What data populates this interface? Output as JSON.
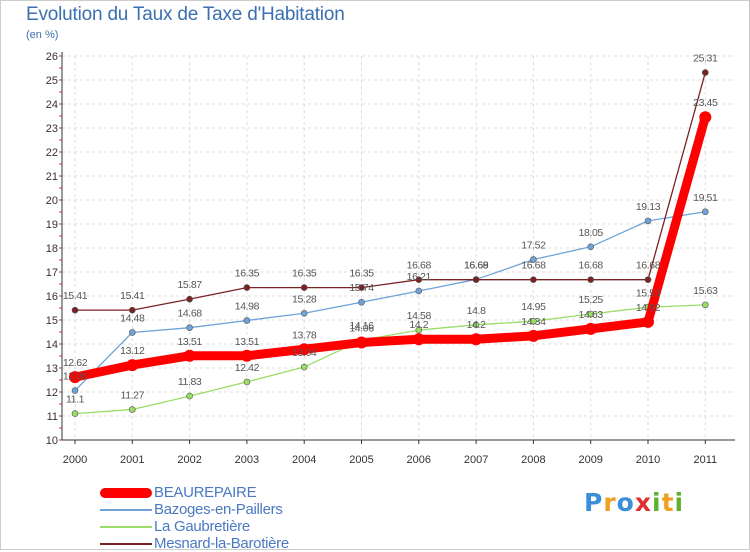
{
  "title": "Evolution du Taux de Taxe d'Habitation",
  "unit_label": "(en %)",
  "chart_data": {
    "type": "line",
    "title": "Evolution du Taux de Taxe d'Habitation",
    "ylabel": "(en %)",
    "xlabel": "",
    "x": [
      "2000",
      "2001",
      "2002",
      "2003",
      "2004",
      "2005",
      "2006",
      "2007",
      "2008",
      "2009",
      "2010",
      "2011"
    ],
    "ylim": [
      10,
      26
    ],
    "yticks": [
      10,
      11,
      12,
      13,
      14,
      15,
      16,
      17,
      18,
      19,
      20,
      21,
      22,
      23,
      24,
      25,
      26
    ],
    "grid": true,
    "legend_position": "bottom-left",
    "series": [
      {
        "name": "BEAUREPAIRE",
        "color": "#ff0000",
        "values": [
          12.62,
          13.12,
          13.51,
          13.51,
          13.78,
          14.06,
          14.2,
          14.2,
          14.34,
          14.63,
          14.92,
          23.45
        ],
        "labels": [
          "12.62",
          "13.12",
          "13.51",
          "13.51",
          "13.78",
          "14.06",
          "14.2",
          "14.2",
          "14.34",
          "14.63",
          "14.92",
          "23.45"
        ]
      },
      {
        "name": "Bazoges-en-Paillers",
        "color": "#6fa3d8",
        "values": [
          12.06,
          14.48,
          14.68,
          14.98,
          15.28,
          15.74,
          16.21,
          16.69,
          17.52,
          18.05,
          19.13,
          19.51
        ],
        "labels": [
          "12.06",
          "14.48",
          "14.68",
          "14.98",
          "15.28",
          "15.74",
          "16.21",
          "16.69",
          "17.52",
          "18.05",
          "19.13",
          "19.51"
        ]
      },
      {
        "name": "La Gaubretière",
        "color": "#99dd66",
        "values": [
          11.1,
          11.27,
          11.83,
          12.42,
          13.04,
          14.16,
          14.58,
          14.8,
          14.95,
          15.25,
          15.53,
          15.63
        ],
        "labels": [
          "11.1",
          "11.27",
          "11.83",
          "12.42",
          "13.04",
          "14.16",
          "14.58",
          "14.8",
          "14.95",
          "15.25",
          "15.53",
          "15.63"
        ]
      },
      {
        "name": "Mesnard-la-Barotière",
        "color": "#7a2222",
        "values": [
          15.41,
          15.41,
          15.87,
          16.35,
          16.35,
          16.35,
          16.68,
          16.68,
          16.68,
          16.68,
          16.68,
          25.31
        ],
        "labels": [
          "15.41",
          "15.41",
          "15.87",
          "16.35",
          "16.35",
          "16.35",
          "16.68",
          "16.68",
          "16.68",
          "16.68",
          "16.68",
          "25.31"
        ]
      }
    ]
  },
  "legend": [
    {
      "label": "BEAUREPAIRE",
      "color": "#ff0000"
    },
    {
      "label": "Bazoges-en-Paillers",
      "color": "#6fa3d8"
    },
    {
      "label": "La Gaubretière",
      "color": "#99dd66"
    },
    {
      "label": "Mesnard-la-Barotière",
      "color": "#7a2222"
    }
  ],
  "logo": {
    "letters": [
      "P",
      "r",
      "o",
      "x",
      "i",
      "t",
      "i"
    ],
    "colors": [
      "#3a8fd8",
      "#f0a020",
      "#3a8fd8",
      "#e03030",
      "#60b030",
      "#f0a020",
      "#60b030"
    ]
  }
}
